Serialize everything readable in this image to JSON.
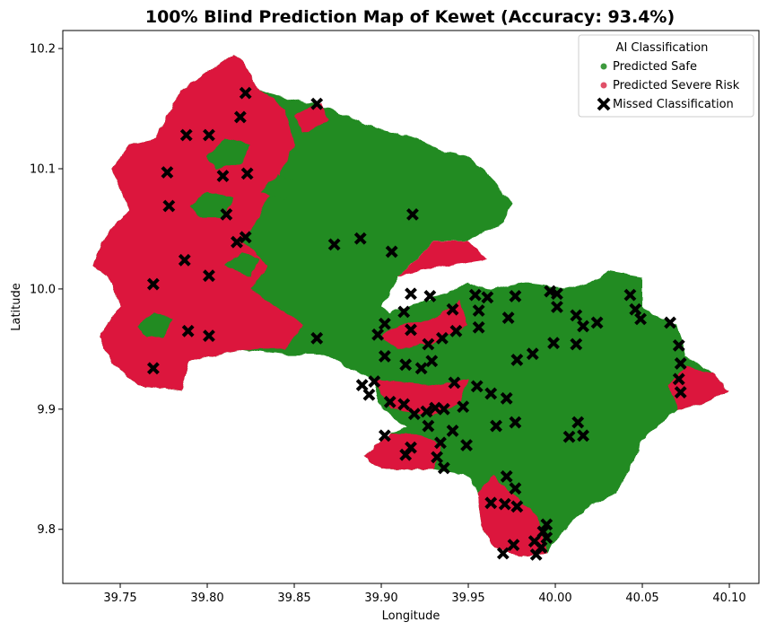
{
  "chart_data": {
    "type": "scatter",
    "title": "100% Blind Prediction Map of Kewet (Accuracy: 93.4%)",
    "xlabel": "Longitude",
    "ylabel": "Latitude",
    "xlim": [
      39.717,
      40.117
    ],
    "ylim": [
      9.755,
      10.215
    ],
    "xticks": [
      39.75,
      39.8,
      39.85,
      39.9,
      39.95,
      40.0,
      40.05,
      40.1
    ],
    "xtick_labels": [
      "39.75",
      "39.80",
      "39.85",
      "39.90",
      "39.95",
      "40.00",
      "40.05",
      "40.10"
    ],
    "yticks": [
      9.8,
      9.9,
      10.0,
      10.1,
      10.2
    ],
    "ytick_labels": [
      "9.8",
      "9.9",
      "10.0",
      "10.1",
      "10.2"
    ],
    "grid": false,
    "legend": {
      "title": "AI Classification",
      "placement": "top-right",
      "entries": [
        {
          "label": "Predicted Safe",
          "color": "#3d9a3d",
          "marker": "circle"
        },
        {
          "label": "Predicted Severe Risk",
          "color": "#e05068",
          "marker": "circle"
        },
        {
          "label": "Missed Classification",
          "color": "#000000",
          "marker": "x"
        }
      ]
    },
    "colors": {
      "safe": "#228b22",
      "risk": "#dc143c",
      "missed": "#000000"
    },
    "regions": {
      "outline": [
        [
          39.738,
          9.96
        ],
        [
          39.745,
          9.94
        ],
        [
          39.76,
          9.92
        ],
        [
          39.785,
          9.915
        ],
        [
          39.79,
          9.94
        ],
        [
          39.82,
          9.95
        ],
        [
          39.845,
          9.945
        ],
        [
          39.87,
          9.945
        ],
        [
          39.88,
          9.935
        ],
        [
          39.895,
          9.925
        ],
        [
          39.9,
          9.9
        ],
        [
          39.915,
          9.885
        ],
        [
          39.905,
          9.88
        ],
        [
          39.89,
          9.86
        ],
        [
          39.9,
          9.85
        ],
        [
          39.93,
          9.85
        ],
        [
          39.95,
          9.845
        ],
        [
          39.955,
          9.83
        ],
        [
          39.958,
          9.8
        ],
        [
          39.965,
          9.785
        ],
        [
          39.98,
          9.778
        ],
        [
          39.995,
          9.78
        ],
        [
          40.005,
          9.8
        ],
        [
          40.02,
          9.82
        ],
        [
          40.035,
          9.83
        ],
        [
          40.045,
          9.855
        ],
        [
          40.05,
          9.875
        ],
        [
          40.07,
          9.9
        ],
        [
          40.085,
          9.905
        ],
        [
          40.1,
          9.915
        ],
        [
          40.09,
          9.93
        ],
        [
          40.075,
          9.945
        ],
        [
          40.07,
          9.97
        ],
        [
          40.06,
          9.975
        ],
        [
          40.05,
          9.985
        ],
        [
          40.05,
          10.01
        ],
        [
          40.03,
          10.015
        ],
        [
          40.02,
          10.005
        ],
        [
          40.005,
          10.0
        ],
        [
          39.985,
          10.005
        ],
        [
          39.96,
          10.0
        ],
        [
          39.95,
          10.005
        ],
        [
          39.935,
          9.995
        ],
        [
          39.915,
          9.985
        ],
        [
          39.905,
          9.98
        ],
        [
          39.9,
          9.985
        ],
        [
          39.91,
          10.01
        ],
        [
          39.92,
          10.025
        ],
        [
          39.93,
          10.04
        ],
        [
          39.95,
          10.04
        ],
        [
          39.97,
          10.055
        ],
        [
          39.975,
          10.07
        ],
        [
          39.965,
          10.09
        ],
        [
          39.955,
          10.105
        ],
        [
          39.95,
          10.11
        ],
        [
          39.935,
          10.115
        ],
        [
          39.92,
          10.125
        ],
        [
          39.895,
          10.135
        ],
        [
          39.87,
          10.15
        ],
        [
          39.86,
          10.155
        ],
        [
          39.84,
          10.16
        ],
        [
          39.83,
          10.165
        ],
        [
          39.82,
          10.19
        ],
        [
          39.815,
          10.195
        ],
        [
          39.8,
          10.18
        ],
        [
          39.785,
          10.165
        ],
        [
          39.77,
          10.125
        ],
        [
          39.755,
          10.12
        ],
        [
          39.745,
          10.1
        ],
        [
          39.75,
          10.085
        ],
        [
          39.755,
          10.065
        ],
        [
          39.745,
          10.05
        ],
        [
          39.74,
          10.04
        ],
        [
          39.735,
          10.02
        ],
        [
          39.745,
          10.005
        ],
        [
          39.75,
          9.985
        ],
        [
          39.745,
          9.975
        ],
        [
          39.738,
          9.96
        ]
      ],
      "risk_patches": [
        [
          [
            39.738,
            9.96
          ],
          [
            39.745,
            9.94
          ],
          [
            39.76,
            9.92
          ],
          [
            39.785,
            9.915
          ],
          [
            39.79,
            9.94
          ],
          [
            39.82,
            9.95
          ],
          [
            39.845,
            9.95
          ],
          [
            39.855,
            9.97
          ],
          [
            39.84,
            9.985
          ],
          [
            39.825,
            10.0
          ],
          [
            39.835,
            10.02
          ],
          [
            39.82,
            10.04
          ],
          [
            39.83,
            10.06
          ],
          [
            39.84,
            10.09
          ],
          [
            39.85,
            10.12
          ],
          [
            39.845,
            10.15
          ],
          [
            39.83,
            10.165
          ],
          [
            39.82,
            10.19
          ],
          [
            39.815,
            10.195
          ],
          [
            39.8,
            10.18
          ],
          [
            39.785,
            10.165
          ],
          [
            39.77,
            10.125
          ],
          [
            39.755,
            10.12
          ],
          [
            39.745,
            10.1
          ],
          [
            39.75,
            10.085
          ],
          [
            39.755,
            10.065
          ],
          [
            39.745,
            10.05
          ],
          [
            39.74,
            10.04
          ],
          [
            39.735,
            10.02
          ],
          [
            39.745,
            10.005
          ],
          [
            39.75,
            9.985
          ],
          [
            39.745,
            9.975
          ],
          [
            39.738,
            9.96
          ]
        ],
        [
          [
            39.955,
            9.83
          ],
          [
            39.958,
            9.8
          ],
          [
            39.965,
            9.785
          ],
          [
            39.98,
            9.778
          ],
          [
            39.995,
            9.78
          ],
          [
            39.99,
            9.81
          ],
          [
            39.975,
            9.83
          ],
          [
            39.965,
            9.845
          ],
          [
            39.955,
            9.83
          ]
        ],
        [
          [
            39.89,
            9.86
          ],
          [
            39.9,
            9.85
          ],
          [
            39.93,
            9.85
          ],
          [
            39.935,
            9.87
          ],
          [
            39.92,
            9.88
          ],
          [
            39.905,
            9.88
          ],
          [
            39.89,
            9.86
          ]
        ],
        [
          [
            40.07,
            9.9
          ],
          [
            40.085,
            9.905
          ],
          [
            40.1,
            9.915
          ],
          [
            40.09,
            9.93
          ],
          [
            40.075,
            9.935
          ],
          [
            40.065,
            9.92
          ],
          [
            40.07,
            9.9
          ]
        ],
        [
          [
            39.9,
            9.96
          ],
          [
            39.91,
            9.97
          ],
          [
            39.93,
            9.975
          ],
          [
            39.945,
            9.99
          ],
          [
            39.95,
            9.97
          ],
          [
            39.93,
            9.955
          ],
          [
            39.91,
            9.95
          ],
          [
            39.9,
            9.96
          ]
        ],
        [
          [
            39.895,
            9.925
          ],
          [
            39.93,
            9.92
          ],
          [
            39.95,
            9.925
          ],
          [
            39.945,
            9.905
          ],
          [
            39.93,
            9.895
          ],
          [
            39.905,
            9.9
          ],
          [
            39.895,
            9.925
          ]
        ],
        [
          [
            39.91,
            10.01
          ],
          [
            39.93,
            10.04
          ],
          [
            39.95,
            10.04
          ],
          [
            39.96,
            10.025
          ],
          [
            39.94,
            10.02
          ],
          [
            39.92,
            10.015
          ],
          [
            39.91,
            10.01
          ]
        ],
        [
          [
            39.85,
            10.145
          ],
          [
            39.865,
            10.155
          ],
          [
            39.87,
            10.14
          ],
          [
            39.855,
            10.13
          ],
          [
            39.85,
            10.145
          ]
        ]
      ],
      "safe_patches": [
        [
          [
            39.79,
            10.07
          ],
          [
            39.8,
            10.08
          ],
          [
            39.815,
            10.075
          ],
          [
            39.81,
            10.06
          ],
          [
            39.795,
            10.06
          ],
          [
            39.79,
            10.07
          ]
        ],
        [
          [
            39.8,
            10.11
          ],
          [
            39.81,
            10.125
          ],
          [
            39.825,
            10.12
          ],
          [
            39.82,
            10.105
          ],
          [
            39.805,
            10.1
          ],
          [
            39.8,
            10.11
          ]
        ],
        [
          [
            39.83,
            10.08
          ],
          [
            39.84,
            10.095
          ],
          [
            39.85,
            10.09
          ],
          [
            39.845,
            10.075
          ],
          [
            39.83,
            10.08
          ]
        ],
        [
          [
            39.76,
            9.97
          ],
          [
            39.77,
            9.98
          ],
          [
            39.78,
            9.975
          ],
          [
            39.775,
            9.96
          ],
          [
            39.765,
            9.96
          ],
          [
            39.76,
            9.97
          ]
        ],
        [
          [
            39.81,
            10.02
          ],
          [
            39.82,
            10.03
          ],
          [
            39.83,
            10.025
          ],
          [
            39.825,
            10.01
          ],
          [
            39.81,
            10.02
          ]
        ]
      ]
    },
    "missed_points": [
      [
        39.822,
        10.163
      ],
      [
        39.863,
        10.154
      ],
      [
        39.819,
        10.143
      ],
      [
        39.788,
        10.128
      ],
      [
        39.801,
        10.128
      ],
      [
        39.777,
        10.097
      ],
      [
        39.809,
        10.094
      ],
      [
        39.823,
        10.096
      ],
      [
        39.778,
        10.069
      ],
      [
        39.811,
        10.062
      ],
      [
        39.918,
        10.062
      ],
      [
        39.822,
        10.043
      ],
      [
        39.817,
        10.039
      ],
      [
        39.873,
        10.037
      ],
      [
        39.888,
        10.042
      ],
      [
        39.906,
        10.031
      ],
      [
        39.787,
        10.024
      ],
      [
        39.801,
        10.011
      ],
      [
        39.769,
        10.004
      ],
      [
        39.917,
        9.996
      ],
      [
        39.928,
        9.994
      ],
      [
        39.954,
        9.995
      ],
      [
        39.961,
        9.993
      ],
      [
        39.977,
        9.994
      ],
      [
        39.997,
        9.998
      ],
      [
        40.001,
        9.996
      ],
      [
        39.913,
        9.981
      ],
      [
        39.941,
        9.983
      ],
      [
        39.956,
        9.982
      ],
      [
        39.902,
        9.971
      ],
      [
        39.898,
        9.962
      ],
      [
        39.917,
        9.966
      ],
      [
        39.935,
        9.959
      ],
      [
        39.956,
        9.968
      ],
      [
        39.973,
        9.976
      ],
      [
        40.001,
        9.985
      ],
      [
        40.012,
        9.978
      ],
      [
        40.016,
        9.969
      ],
      [
        40.024,
        9.972
      ],
      [
        40.046,
        9.983
      ],
      [
        40.043,
        9.995
      ],
      [
        40.049,
        9.975
      ],
      [
        40.066,
        9.972
      ],
      [
        39.863,
        9.959
      ],
      [
        39.789,
        9.965
      ],
      [
        39.801,
        9.961
      ],
      [
        39.927,
        9.954
      ],
      [
        39.943,
        9.965
      ],
      [
        39.999,
        9.955
      ],
      [
        40.012,
        9.954
      ],
      [
        40.071,
        9.953
      ],
      [
        39.902,
        9.944
      ],
      [
        39.929,
        9.94
      ],
      [
        39.978,
        9.941
      ],
      [
        39.987,
        9.946
      ],
      [
        39.914,
        9.937
      ],
      [
        39.923,
        9.934
      ],
      [
        39.769,
        9.934
      ],
      [
        40.072,
        9.938
      ],
      [
        40.071,
        9.925
      ],
      [
        40.072,
        9.914
      ],
      [
        39.889,
        9.92
      ],
      [
        39.896,
        9.923
      ],
      [
        39.893,
        9.912
      ],
      [
        39.905,
        9.906
      ],
      [
        39.913,
        9.904
      ],
      [
        39.942,
        9.922
      ],
      [
        39.955,
        9.919
      ],
      [
        39.963,
        9.913
      ],
      [
        39.972,
        9.909
      ],
      [
        39.919,
        9.896
      ],
      [
        39.926,
        9.898
      ],
      [
        39.931,
        9.901
      ],
      [
        39.936,
        9.9
      ],
      [
        39.947,
        9.902
      ],
      [
        39.977,
        9.889
      ],
      [
        39.966,
        9.886
      ],
      [
        39.927,
        9.886
      ],
      [
        39.941,
        9.882
      ],
      [
        39.934,
        9.872
      ],
      [
        39.949,
        9.87
      ],
      [
        39.917,
        9.868
      ],
      [
        39.914,
        9.862
      ],
      [
        39.932,
        9.86
      ],
      [
        39.936,
        9.851
      ],
      [
        39.902,
        9.878
      ],
      [
        40.013,
        9.889
      ],
      [
        40.008,
        9.877
      ],
      [
        40.016,
        9.878
      ],
      [
        39.972,
        9.844
      ],
      [
        39.977,
        9.834
      ],
      [
        39.963,
        9.822
      ],
      [
        39.971,
        9.821
      ],
      [
        39.978,
        9.819
      ],
      [
        39.976,
        9.787
      ],
      [
        39.97,
        9.78
      ],
      [
        39.988,
        9.79
      ],
      [
        39.992,
        9.785
      ],
      [
        39.989,
        9.779
      ],
      [
        39.995,
        9.804
      ],
      [
        39.993,
        9.798
      ],
      [
        39.995,
        9.793
      ]
    ]
  }
}
